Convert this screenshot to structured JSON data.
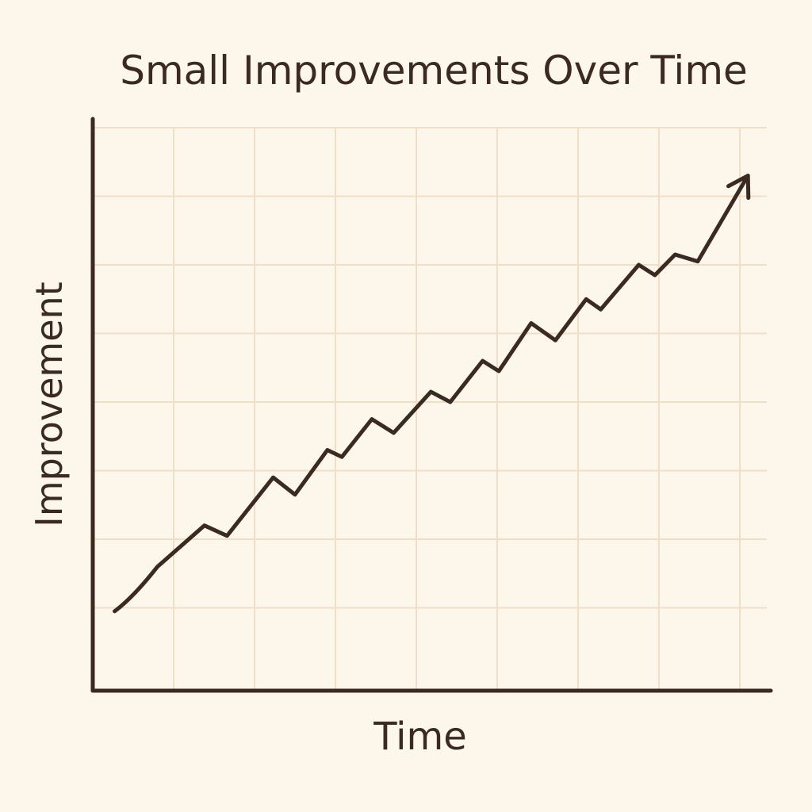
{
  "chart_data": {
    "type": "line",
    "title": "Small Improvements Over Time",
    "xlabel": "Time",
    "ylabel": "Improvement",
    "grid": true,
    "x_ticks": 8,
    "y_ticks": 8,
    "xlim": [
      0,
      8.3
    ],
    "ylim": [
      0,
      8
    ],
    "series": [
      {
        "name": "Improvement",
        "points": [
          [
            0.27,
            0.95
          ],
          [
            0.5,
            1.15
          ],
          [
            0.8,
            1.6
          ],
          [
            1.38,
            2.2
          ],
          [
            1.66,
            2.05
          ],
          [
            2.23,
            2.9
          ],
          [
            2.5,
            2.65
          ],
          [
            2.9,
            3.3
          ],
          [
            3.08,
            3.2
          ],
          [
            3.45,
            3.75
          ],
          [
            3.72,
            3.55
          ],
          [
            4.18,
            4.15
          ],
          [
            4.42,
            4.0
          ],
          [
            4.82,
            4.6
          ],
          [
            5.02,
            4.45
          ],
          [
            5.42,
            5.15
          ],
          [
            5.72,
            4.9
          ],
          [
            6.1,
            5.5
          ],
          [
            6.28,
            5.35
          ],
          [
            6.75,
            6.0
          ],
          [
            6.95,
            5.85
          ],
          [
            7.2,
            6.15
          ],
          [
            7.48,
            6.05
          ],
          [
            8.1,
            7.3
          ]
        ],
        "end_marker": "arrow",
        "color": "#3a2a22"
      }
    ]
  },
  "colors": {
    "background": "#fdf6ea",
    "grid": "#f0dfc7",
    "axis": "#3a2a22",
    "line": "#3a2a22"
  }
}
